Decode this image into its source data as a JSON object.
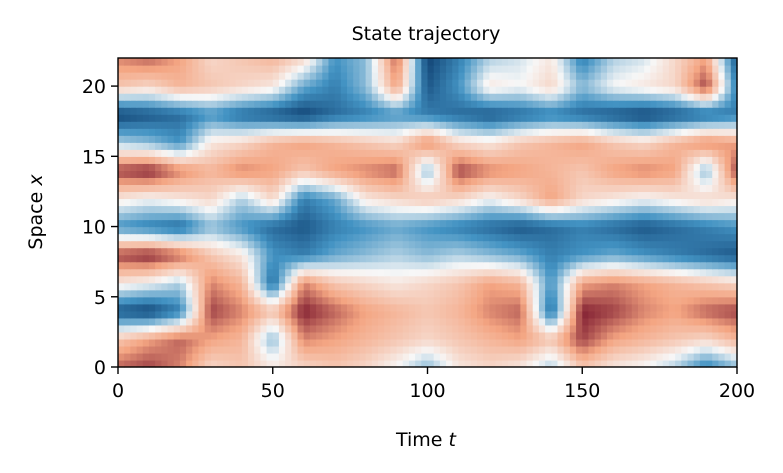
{
  "chart_data": {
    "type": "heatmap",
    "title": "State trajectory",
    "xlabel": "Time",
    "xlabel_var": "t",
    "ylabel": "Space",
    "ylabel_var": "x",
    "xlim": [
      0,
      200
    ],
    "ylim": [
      0,
      22
    ],
    "xticks": [
      "0",
      "50",
      "100",
      "150",
      "200"
    ],
    "yticks": [
      "0",
      "5",
      "10",
      "15",
      "20"
    ],
    "colormap": "diverging blue-white-red (RdBu reversed)",
    "colors": {
      "negative": "#053061",
      "mid_negative": "#4393c3",
      "zero": "#f7f7f7",
      "mid_positive": "#f4a582",
      "positive": "#67001f"
    },
    "value_range": [
      -1,
      1
    ],
    "x": [
      0,
      10,
      20,
      30,
      40,
      50,
      60,
      70,
      80,
      90,
      100,
      110,
      120,
      130,
      140,
      150,
      160,
      170,
      180,
      190,
      200
    ],
    "y": [
      0,
      2,
      4,
      6,
      8,
      10,
      12,
      14,
      16,
      18,
      20,
      22
    ],
    "values": [
      [
        0.7,
        0.8,
        0.6,
        0.2,
        0.3,
        0.1,
        0.2,
        0.3,
        0.2,
        0.0,
        -0.3,
        0.1,
        0.2,
        0.1,
        -0.2,
        0.3,
        0.1,
        0.0,
        -0.2,
        -0.6,
        -0.3
      ],
      [
        0.3,
        0.5,
        0.7,
        0.5,
        0.4,
        -0.3,
        0.6,
        0.5,
        0.4,
        0.3,
        0.2,
        0.3,
        0.4,
        0.5,
        0.3,
        0.8,
        0.5,
        0.4,
        0.3,
        0.2,
        0.4
      ],
      [
        -0.8,
        -0.9,
        -0.6,
        0.8,
        0.6,
        0.3,
        0.9,
        0.7,
        0.5,
        0.4,
        0.3,
        0.4,
        0.6,
        0.7,
        -0.7,
        0.9,
        0.8,
        0.6,
        0.5,
        0.7,
        0.8
      ],
      [
        0.1,
        0.0,
        -0.2,
        0.6,
        0.4,
        -0.7,
        0.6,
        0.3,
        0.2,
        0.1,
        0.2,
        0.3,
        0.5,
        0.4,
        -0.5,
        0.5,
        0.6,
        0.5,
        0.4,
        0.3,
        0.2
      ],
      [
        0.8,
        0.9,
        0.7,
        0.3,
        0.1,
        -0.5,
        -0.6,
        -0.4,
        -0.3,
        -0.2,
        -0.3,
        -0.2,
        -0.3,
        -0.4,
        -0.6,
        -0.5,
        -0.4,
        -0.5,
        -0.6,
        -0.7,
        -0.8
      ],
      [
        -0.5,
        -0.6,
        -0.7,
        -0.3,
        -0.5,
        -0.7,
        -0.8,
        -0.6,
        -0.5,
        -0.4,
        -0.5,
        -0.6,
        -0.7,
        -0.8,
        -0.7,
        -0.6,
        -0.7,
        -0.8,
        -0.7,
        -0.6,
        -0.5
      ],
      [
        0.1,
        0.0,
        0.1,
        0.2,
        -0.2,
        0.2,
        -0.6,
        -0.4,
        0.1,
        0.2,
        0.3,
        0.2,
        0.0,
        0.2,
        0.5,
        0.2,
        0.1,
        0.0,
        0.1,
        0.2,
        0.1
      ],
      [
        0.8,
        0.9,
        0.6,
        0.4,
        0.6,
        0.5,
        0.3,
        0.5,
        0.6,
        0.7,
        -0.3,
        0.8,
        0.6,
        0.5,
        0.4,
        0.3,
        0.5,
        0.6,
        0.5,
        -0.3,
        0.8
      ],
      [
        -0.2,
        -0.3,
        -0.5,
        0.1,
        0.2,
        0.4,
        0.5,
        0.4,
        0.3,
        0.2,
        0.6,
        0.2,
        0.1,
        0.3,
        0.4,
        0.5,
        0.3,
        0.2,
        0.4,
        0.6,
        0.5
      ],
      [
        -0.9,
        -0.8,
        -0.7,
        -0.5,
        -0.7,
        -0.8,
        -0.9,
        -0.7,
        -0.6,
        -0.5,
        -0.6,
        -0.7,
        -0.8,
        -0.7,
        -0.6,
        -0.7,
        -0.8,
        -0.9,
        -0.8,
        -0.7,
        -0.6
      ],
      [
        0.3,
        0.2,
        0.4,
        0.3,
        0.2,
        0.1,
        -0.4,
        -0.6,
        -0.3,
        0.5,
        -0.8,
        -0.5,
        0.1,
        0.0,
        0.2,
        -0.3,
        0.0,
        0.1,
        0.2,
        0.8,
        -0.6
      ],
      [
        0.6,
        0.7,
        0.5,
        0.2,
        0.3,
        0.4,
        0.2,
        -0.5,
        -0.3,
        0.7,
        -0.9,
        -0.6,
        -0.2,
        -0.1,
        0.1,
        -0.6,
        -0.2,
        -0.1,
        0.2,
        0.5,
        -0.8
      ]
    ]
  }
}
